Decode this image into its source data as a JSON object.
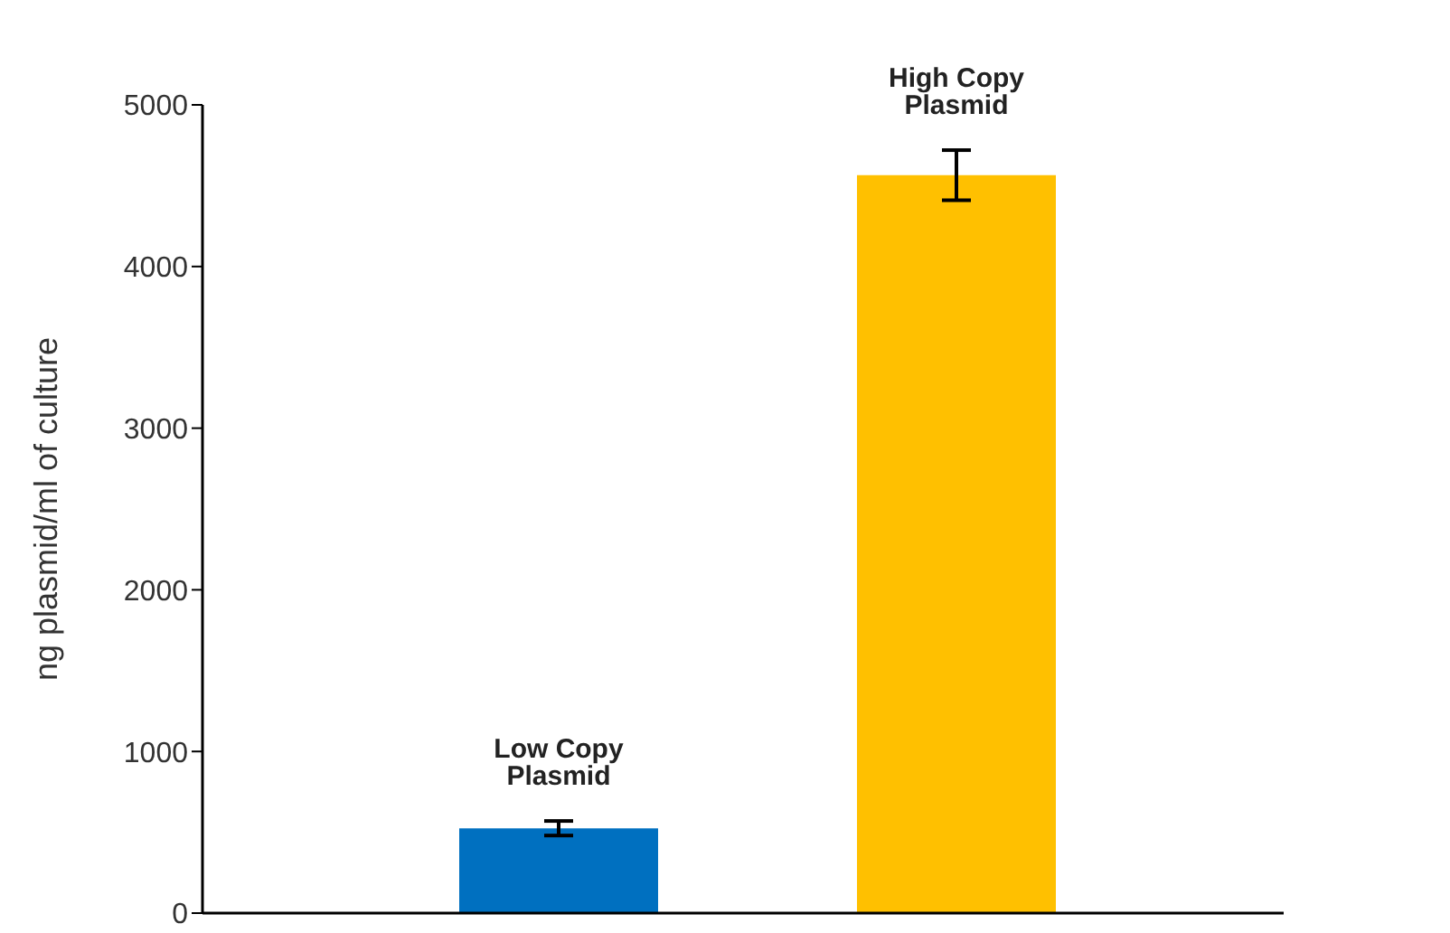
{
  "chart_data": {
    "type": "bar",
    "ylabel": "ng plasmid/ml of culture",
    "categories": [
      "Low Copy Plasmid",
      "High Copy Plasmid"
    ],
    "values": [
      525,
      4565
    ],
    "errors": [
      45,
      155
    ],
    "colors": [
      "#0070c0",
      "#ffc000"
    ],
    "ylim": [
      0,
      5000
    ],
    "yticks": [
      0,
      1000,
      2000,
      3000,
      4000,
      5000
    ],
    "grid": false,
    "legend": false,
    "tick_labels": "y"
  }
}
